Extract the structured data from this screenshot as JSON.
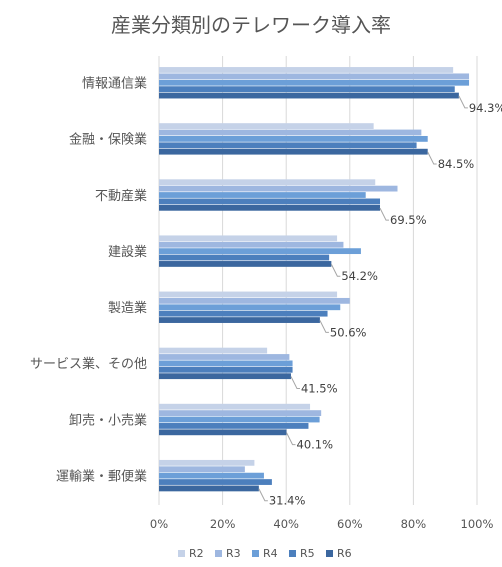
{
  "chart_data": {
    "type": "bar",
    "orientation": "horizontal",
    "title": "産業分類別のテレワーク導入率",
    "categories": [
      "情報通信業",
      "金融・保険業",
      "不動産業",
      "建設業",
      "製造業",
      "サービス業、その他",
      "卸売・小売業",
      "運輸業・郵便業"
    ],
    "series": [
      {
        "name": "R2",
        "color": "#c5d2e8",
        "values": [
          92.5,
          67.5,
          68,
          56,
          56,
          34,
          47.5,
          30
        ]
      },
      {
        "name": "R3",
        "color": "#9eb7e0",
        "values": [
          97.5,
          82.5,
          75,
          58,
          60,
          41,
          51,
          27
        ]
      },
      {
        "name": "R4",
        "color": "#6c9fd8",
        "values": [
          97.5,
          84.5,
          65,
          63.5,
          57,
          42,
          50.5,
          33
        ]
      },
      {
        "name": "R5",
        "color": "#4c7fbd",
        "values": [
          93,
          81,
          69.5,
          53.5,
          53,
          42,
          47,
          35.5
        ]
      },
      {
        "name": "R6",
        "color": "#3b679f",
        "values": [
          94.3,
          84.5,
          69.5,
          54.2,
          50.6,
          41.5,
          40.1,
          31.4
        ]
      }
    ],
    "data_labels": [
      "94.3%",
      "84.5%",
      "69.5%",
      "54.2%",
      "50.6%",
      "41.5%",
      "40.1%",
      "31.4%"
    ],
    "x_ticks": [
      "0%",
      "20%",
      "40%",
      "60%",
      "80%",
      "100%"
    ],
    "xlim": [
      0,
      100
    ],
    "grid": true,
    "legend_position": "bottom"
  }
}
